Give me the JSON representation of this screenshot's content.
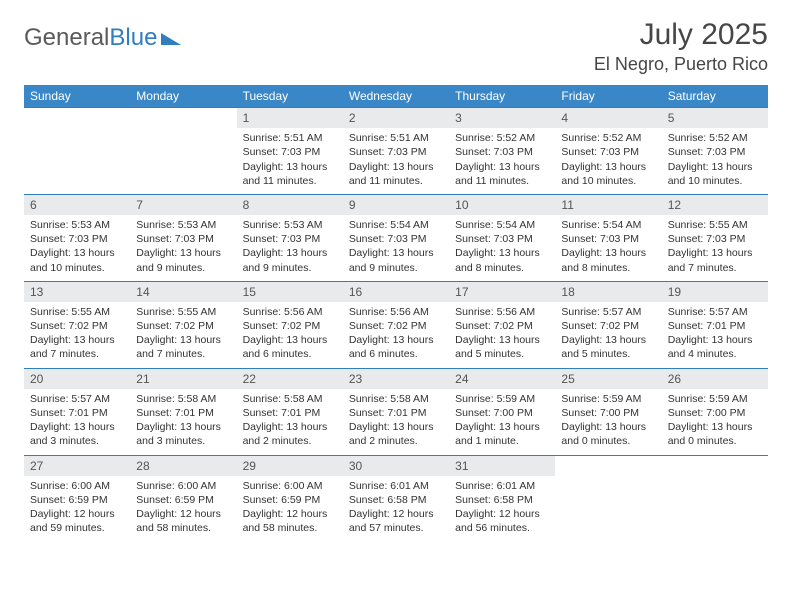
{
  "brand": {
    "part1": "General",
    "part2": "Blue"
  },
  "title": "July 2025",
  "location": "El Negro, Puerto Rico",
  "colors": {
    "header_bg": "#3a87c8",
    "border": "#2f7ec0",
    "daynum_bg": "#e8eaec",
    "text": "#333333",
    "title": "#464646"
  },
  "day_headers": [
    "Sunday",
    "Monday",
    "Tuesday",
    "Wednesday",
    "Thursday",
    "Friday",
    "Saturday"
  ],
  "weeks": [
    [
      null,
      null,
      {
        "n": "1",
        "r": "5:51 AM",
        "s": "7:03 PM",
        "d": "13 hours and 11 minutes."
      },
      {
        "n": "2",
        "r": "5:51 AM",
        "s": "7:03 PM",
        "d": "13 hours and 11 minutes."
      },
      {
        "n": "3",
        "r": "5:52 AM",
        "s": "7:03 PM",
        "d": "13 hours and 11 minutes."
      },
      {
        "n": "4",
        "r": "5:52 AM",
        "s": "7:03 PM",
        "d": "13 hours and 10 minutes."
      },
      {
        "n": "5",
        "r": "5:52 AM",
        "s": "7:03 PM",
        "d": "13 hours and 10 minutes."
      }
    ],
    [
      {
        "n": "6",
        "r": "5:53 AM",
        "s": "7:03 PM",
        "d": "13 hours and 10 minutes."
      },
      {
        "n": "7",
        "r": "5:53 AM",
        "s": "7:03 PM",
        "d": "13 hours and 9 minutes."
      },
      {
        "n": "8",
        "r": "5:53 AM",
        "s": "7:03 PM",
        "d": "13 hours and 9 minutes."
      },
      {
        "n": "9",
        "r": "5:54 AM",
        "s": "7:03 PM",
        "d": "13 hours and 9 minutes."
      },
      {
        "n": "10",
        "r": "5:54 AM",
        "s": "7:03 PM",
        "d": "13 hours and 8 minutes."
      },
      {
        "n": "11",
        "r": "5:54 AM",
        "s": "7:03 PM",
        "d": "13 hours and 8 minutes."
      },
      {
        "n": "12",
        "r": "5:55 AM",
        "s": "7:03 PM",
        "d": "13 hours and 7 minutes."
      }
    ],
    [
      {
        "n": "13",
        "r": "5:55 AM",
        "s": "7:02 PM",
        "d": "13 hours and 7 minutes."
      },
      {
        "n": "14",
        "r": "5:55 AM",
        "s": "7:02 PM",
        "d": "13 hours and 7 minutes."
      },
      {
        "n": "15",
        "r": "5:56 AM",
        "s": "7:02 PM",
        "d": "13 hours and 6 minutes."
      },
      {
        "n": "16",
        "r": "5:56 AM",
        "s": "7:02 PM",
        "d": "13 hours and 6 minutes."
      },
      {
        "n": "17",
        "r": "5:56 AM",
        "s": "7:02 PM",
        "d": "13 hours and 5 minutes."
      },
      {
        "n": "18",
        "r": "5:57 AM",
        "s": "7:02 PM",
        "d": "13 hours and 5 minutes."
      },
      {
        "n": "19",
        "r": "5:57 AM",
        "s": "7:01 PM",
        "d": "13 hours and 4 minutes."
      }
    ],
    [
      {
        "n": "20",
        "r": "5:57 AM",
        "s": "7:01 PM",
        "d": "13 hours and 3 minutes."
      },
      {
        "n": "21",
        "r": "5:58 AM",
        "s": "7:01 PM",
        "d": "13 hours and 3 minutes."
      },
      {
        "n": "22",
        "r": "5:58 AM",
        "s": "7:01 PM",
        "d": "13 hours and 2 minutes."
      },
      {
        "n": "23",
        "r": "5:58 AM",
        "s": "7:01 PM",
        "d": "13 hours and 2 minutes."
      },
      {
        "n": "24",
        "r": "5:59 AM",
        "s": "7:00 PM",
        "d": "13 hours and 1 minute."
      },
      {
        "n": "25",
        "r": "5:59 AM",
        "s": "7:00 PM",
        "d": "13 hours and 0 minutes."
      },
      {
        "n": "26",
        "r": "5:59 AM",
        "s": "7:00 PM",
        "d": "13 hours and 0 minutes."
      }
    ],
    [
      {
        "n": "27",
        "r": "6:00 AM",
        "s": "6:59 PM",
        "d": "12 hours and 59 minutes."
      },
      {
        "n": "28",
        "r": "6:00 AM",
        "s": "6:59 PM",
        "d": "12 hours and 58 minutes."
      },
      {
        "n": "29",
        "r": "6:00 AM",
        "s": "6:59 PM",
        "d": "12 hours and 58 minutes."
      },
      {
        "n": "30",
        "r": "6:01 AM",
        "s": "6:58 PM",
        "d": "12 hours and 57 minutes."
      },
      {
        "n": "31",
        "r": "6:01 AM",
        "s": "6:58 PM",
        "d": "12 hours and 56 minutes."
      },
      null,
      null
    ]
  ],
  "labels": {
    "sunrise": "Sunrise: ",
    "sunset": "Sunset: ",
    "daylight": "Daylight: "
  }
}
